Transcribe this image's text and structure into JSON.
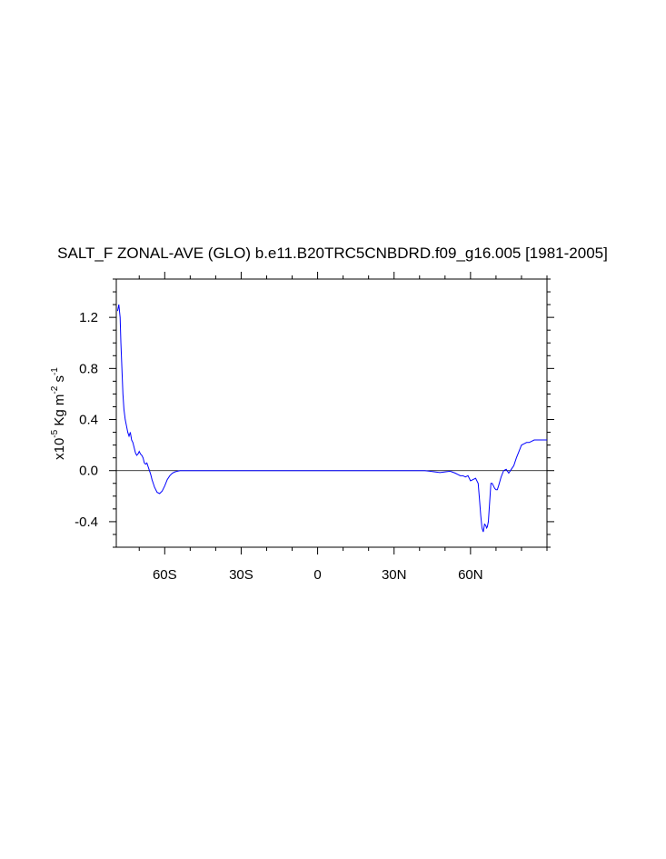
{
  "chart_data": {
    "type": "line",
    "title": "SALT_F ZONAL-AVE (GLO) b.e11.B20TRC5CNBDRD.f09_g16.005 [1981-2005]",
    "ylabel": {
      "base": "x10",
      "exp1": "-5",
      "mid": " Kg m",
      "exp2": "-2",
      "unit": " s",
      "exp3": "-1"
    },
    "xlim": [
      -79,
      90
    ],
    "ylim": [
      -0.6,
      1.5
    ],
    "x_ticks": [
      {
        "value": -60,
        "label": "60S"
      },
      {
        "value": -30,
        "label": "30S"
      },
      {
        "value": 0,
        "label": "0"
      },
      {
        "value": 30,
        "label": "30N"
      },
      {
        "value": 60,
        "label": "60N"
      }
    ],
    "y_ticks": [
      {
        "value": 1.2,
        "label": "1.2"
      },
      {
        "value": 0.8,
        "label": "0.8"
      },
      {
        "value": 0.4,
        "label": "0.4"
      },
      {
        "value": 0.0,
        "label": "0.0"
      },
      {
        "value": -0.4,
        "label": "-0.4"
      }
    ],
    "zero_line": true,
    "series": [
      {
        "color": "#0000ff",
        "x": [
          -78.5,
          -78.0,
          -77.5,
          -77.2,
          -76.8,
          -76.4,
          -76.0,
          -75.5,
          -75.0,
          -74.5,
          -74.0,
          -73.5,
          -73.0,
          -72.5,
          -72.0,
          -71.5,
          -71.0,
          -70.5,
          -70.0,
          -69.5,
          -69.0,
          -68.5,
          -68.0,
          -67.5,
          -67.0,
          -66.5,
          -66.0,
          -65.5,
          -65.0,
          -64.5,
          -64.0,
          -63.0,
          -62.0,
          -61.0,
          -60.0,
          -59.0,
          -58.0,
          -57.0,
          -56.0,
          -55.0,
          -54.0,
          -53.0,
          -52.0,
          -50.0,
          -45.0,
          -30.0,
          0.0,
          20.0,
          40.0,
          42.0,
          44.0,
          46.0,
          48.0,
          50.0,
          52.0,
          54.0,
          55.0,
          56.0,
          57.0,
          58.0,
          59.0,
          60.0,
          61.0,
          62.0,
          63.0,
          63.5,
          64.0,
          64.5,
          65.0,
          65.5,
          66.0,
          66.3,
          66.6,
          67.0,
          67.5,
          68.0,
          68.5,
          69.0,
          69.5,
          70.0,
          70.5,
          71.0,
          72.0,
          73.0,
          74.0,
          75.0,
          76.0,
          77.0,
          78.0,
          79.0,
          80.0,
          81.0,
          82.0,
          83.0,
          84.0,
          85.0,
          86.0,
          87.0,
          88.0,
          89.0,
          90.0
        ],
        "values": [
          1.25,
          1.3,
          1.2,
          1.0,
          0.8,
          0.6,
          0.48,
          0.4,
          0.35,
          0.3,
          0.27,
          0.3,
          0.24,
          0.22,
          0.18,
          0.14,
          0.12,
          0.13,
          0.15,
          0.13,
          0.12,
          0.1,
          0.06,
          0.05,
          0.06,
          0.03,
          0.0,
          -0.03,
          -0.07,
          -0.1,
          -0.13,
          -0.17,
          -0.18,
          -0.16,
          -0.12,
          -0.07,
          -0.04,
          -0.02,
          -0.01,
          -0.005,
          0.0,
          0.0,
          0.0,
          0.0,
          0.0,
          0.0,
          0.0,
          0.0,
          0.0,
          0.0,
          -0.005,
          -0.01,
          -0.015,
          -0.01,
          -0.005,
          -0.02,
          -0.03,
          -0.04,
          -0.04,
          -0.05,
          -0.04,
          -0.08,
          -0.07,
          -0.06,
          -0.1,
          -0.22,
          -0.35,
          -0.45,
          -0.48,
          -0.42,
          -0.43,
          -0.45,
          -0.44,
          -0.4,
          -0.25,
          -0.1,
          -0.1,
          -0.12,
          -0.14,
          -0.15,
          -0.15,
          -0.12,
          -0.05,
          0.0,
          0.01,
          -0.02,
          0.01,
          0.04,
          0.1,
          0.15,
          0.2,
          0.21,
          0.22,
          0.22,
          0.23,
          0.24,
          0.24,
          0.24,
          0.24,
          0.24,
          0.24
        ]
      }
    ]
  }
}
